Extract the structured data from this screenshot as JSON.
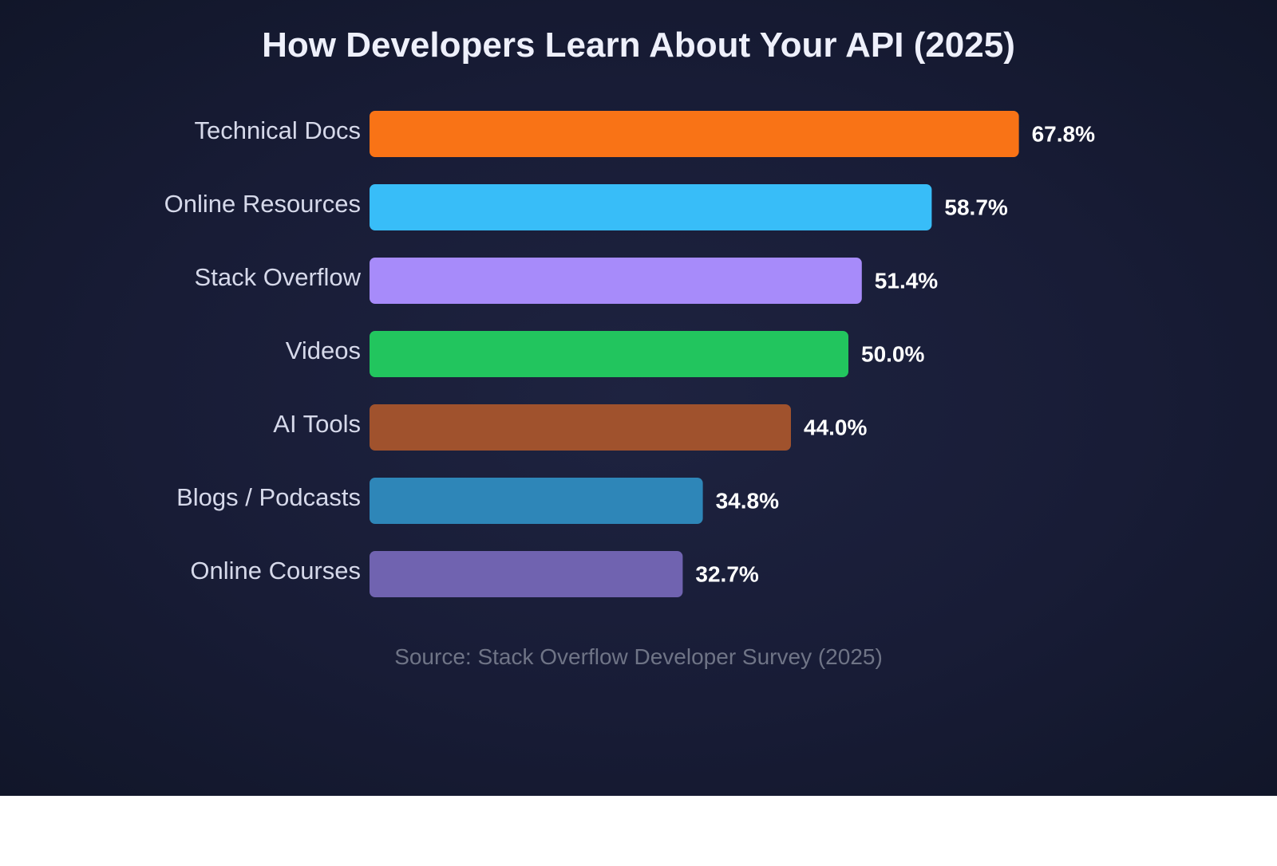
{
  "chart_data": {
    "type": "bar",
    "orientation": "horizontal",
    "title": "How Developers Learn About Your API (2025)",
    "categories": [
      "Technical Docs",
      "Online Resources",
      "Stack Overflow",
      "Videos",
      "AI Tools",
      "Blogs / Podcasts",
      "Online Courses"
    ],
    "values": [
      67.8,
      58.7,
      51.4,
      50.0,
      44.0,
      34.8,
      32.7
    ],
    "value_labels": [
      "67.8%",
      "58.7%",
      "51.4%",
      "50.0%",
      "44.0%",
      "34.8%",
      "32.7%"
    ],
    "colors": [
      "#f97316",
      "#38bdf8",
      "#a78bfa",
      "#22c55e",
      "#a0522d",
      "#2e86b8",
      "#7063b0"
    ],
    "xlim": [
      0,
      100
    ],
    "grid": false,
    "legend": "none",
    "source": "Source: Stack Overflow Developer Survey (2025)"
  }
}
